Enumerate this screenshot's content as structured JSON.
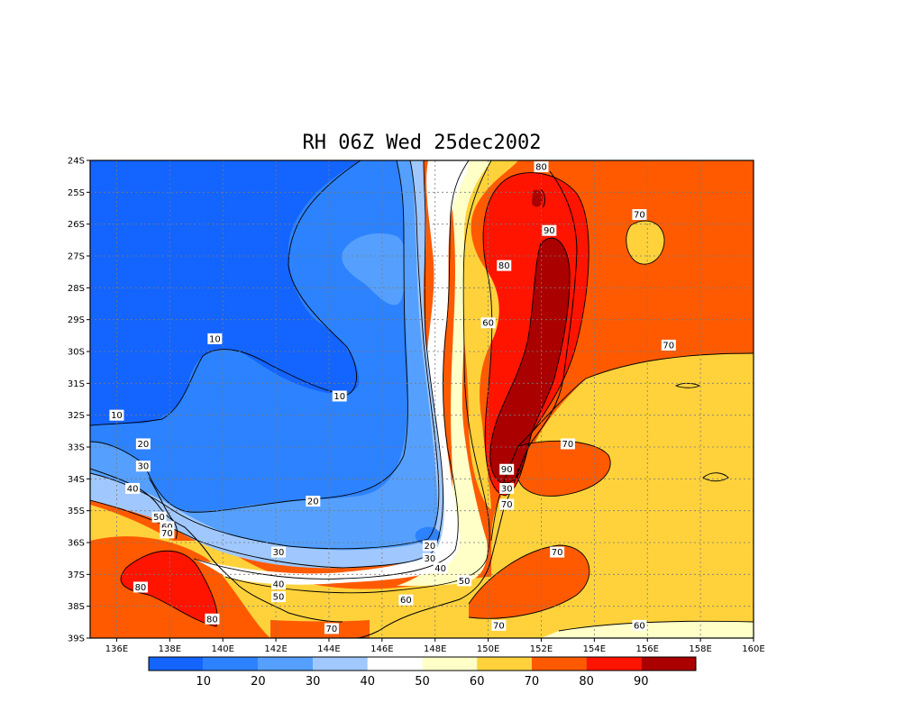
{
  "title": "RH 06Z Wed 25dec2002",
  "map": {
    "lon_labels": [
      "136E",
      "138E",
      "140E",
      "142E",
      "144E",
      "146E",
      "148E",
      "150E",
      "152E",
      "154E",
      "156E",
      "158E",
      "160E"
    ],
    "lat_labels": [
      "24S",
      "25S",
      "26S",
      "27S",
      "28S",
      "29S",
      "30S",
      "31S",
      "32S",
      "33S",
      "34S",
      "35S",
      "36S",
      "37S",
      "38S",
      "39S"
    ],
    "lon_range": [
      135,
      160
    ],
    "lat_range": [
      -24,
      -39
    ],
    "grid": "dotted"
  },
  "colorbar": {
    "colors": [
      "#1464ff",
      "#2d82ff",
      "#55a0ff",
      "#a0c8ff",
      "#ffffff",
      "#ffffc8",
      "#ffd23c",
      "#ff5a00",
      "#ff1400",
      "#aa0000"
    ],
    "labels": [
      "10",
      "20",
      "30",
      "40",
      "50",
      "60",
      "70",
      "80",
      "90"
    ]
  },
  "contour_labels": [
    {
      "text": "80",
      "lon": 152.0,
      "lat": -24.2
    },
    {
      "text": "70",
      "lon": 155.7,
      "lat": -25.7
    },
    {
      "text": "90",
      "lon": 152.3,
      "lat": -26.2
    },
    {
      "text": "80",
      "lon": 150.6,
      "lat": -27.3
    },
    {
      "text": "60",
      "lon": 150.0,
      "lat": -29.1
    },
    {
      "text": "10",
      "lon": 139.7,
      "lat": -29.6
    },
    {
      "text": "70",
      "lon": 156.8,
      "lat": -29.8
    },
    {
      "text": "10",
      "lon": 144.4,
      "lat": -31.4
    },
    {
      "text": "10",
      "lon": 136.0,
      "lat": -32.0
    },
    {
      "text": "20",
      "lon": 137.0,
      "lat": -32.9
    },
    {
      "text": "70",
      "lon": 153.0,
      "lat": -32.9
    },
    {
      "text": "30",
      "lon": 137.0,
      "lat": -33.6
    },
    {
      "text": "40",
      "lon": 136.6,
      "lat": -34.3
    },
    {
      "text": "90",
      "lon": 150.7,
      "lat": -33.7
    },
    {
      "text": "30",
      "lon": 150.7,
      "lat": -34.3
    },
    {
      "text": "20",
      "lon": 143.4,
      "lat": -34.7
    },
    {
      "text": "70",
      "lon": 150.7,
      "lat": -34.8
    },
    {
      "text": "50",
      "lon": 137.6,
      "lat": -35.2
    },
    {
      "text": "60",
      "lon": 137.9,
      "lat": -35.5
    },
    {
      "text": "70",
      "lon": 137.9,
      "lat": -35.7
    },
    {
      "text": "20",
      "lon": 147.8,
      "lat": -36.1
    },
    {
      "text": "30",
      "lon": 142.1,
      "lat": -36.3
    },
    {
      "text": "70",
      "lon": 152.6,
      "lat": -36.3
    },
    {
      "text": "30",
      "lon": 147.8,
      "lat": -36.5
    },
    {
      "text": "40",
      "lon": 148.2,
      "lat": -36.8
    },
    {
      "text": "40",
      "lon": 142.1,
      "lat": -37.3
    },
    {
      "text": "50",
      "lon": 149.1,
      "lat": -37.2
    },
    {
      "text": "80",
      "lon": 136.9,
      "lat": -37.4
    },
    {
      "text": "50",
      "lon": 142.1,
      "lat": -37.7
    },
    {
      "text": "60",
      "lon": 146.9,
      "lat": -37.8
    },
    {
      "text": "80",
      "lon": 139.6,
      "lat": -38.4
    },
    {
      "text": "70",
      "lon": 144.1,
      "lat": -38.7
    },
    {
      "text": "70",
      "lon": 150.4,
      "lat": -38.6
    },
    {
      "text": "60",
      "lon": 155.7,
      "lat": -38.6
    }
  ]
}
